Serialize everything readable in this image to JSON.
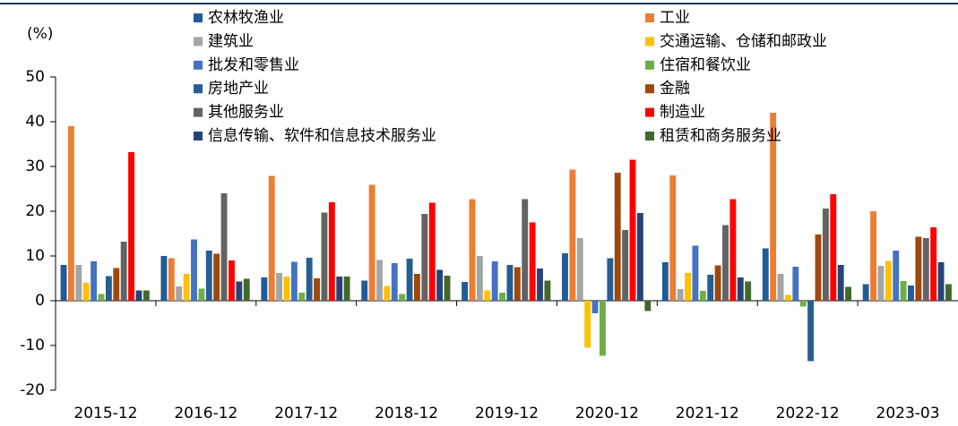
{
  "chart_data": {
    "type": "bar",
    "y_label": "(%)",
    "categories": [
      "2015-12",
      "2016-12",
      "2017-12",
      "2018-12",
      "2019-12",
      "2020-12",
      "2021-12",
      "2022-12",
      "2023-03"
    ],
    "ylim": [
      -20,
      50
    ],
    "yticks": [
      -20,
      -10,
      0,
      10,
      20,
      30,
      40,
      50
    ],
    "series": [
      {
        "name": "农林牧渔业",
        "color": "#1f5c99",
        "values": [
          8,
          10,
          5.2,
          4.5,
          4.2,
          10.6,
          8.6,
          11.7,
          3.7
        ]
      },
      {
        "name": "工业",
        "color": "#ed7d31",
        "values": [
          39,
          9.5,
          27.9,
          25.9,
          22.7,
          29.3,
          28,
          42,
          20
        ]
      },
      {
        "name": "建筑业",
        "color": "#a5a5a5",
        "values": [
          8,
          3.2,
          6.2,
          9.1,
          10,
          14,
          2.6,
          6,
          7.8
        ]
      },
      {
        "name": "交通运输、仓储和邮政业",
        "color": "#ffc000",
        "values": [
          4,
          6,
          5.4,
          3.3,
          2.3,
          -10.5,
          6.2,
          1.3,
          8.9
        ]
      },
      {
        "name": "批发和零售业",
        "color": "#4472c4",
        "values": [
          8.8,
          13.7,
          8.7,
          8.4,
          8.8,
          -2.8,
          12.3,
          7.6,
          11.2
        ]
      },
      {
        "name": "住宿和餐饮业",
        "color": "#70ad47",
        "values": [
          1.5,
          2.7,
          1.8,
          1.5,
          1.8,
          -12.3,
          2.2,
          -1.3,
          4.4
        ]
      },
      {
        "name": "房地产业",
        "color": "#255e91",
        "values": [
          5.5,
          11.2,
          9.6,
          9.4,
          8,
          9.5,
          5.8,
          -13.5,
          3.4
        ]
      },
      {
        "name": "金融",
        "color": "#9e480e",
        "values": [
          7.3,
          10.5,
          5,
          6,
          7.5,
          28.6,
          7.9,
          14.8,
          14.3
        ]
      },
      {
        "name": "其他服务业",
        "color": "#636363",
        "values": [
          13.2,
          24,
          19.7,
          19.4,
          22.7,
          15.8,
          16.9,
          20.6,
          14
        ]
      },
      {
        "name": "制造业",
        "color": "#ff0000",
        "values": [
          33.2,
          9,
          22,
          21.9,
          17.5,
          31.5,
          22.7,
          23.8,
          16.4
        ]
      },
      {
        "name": "信息传输、软件和信息技术服务业",
        "color": "#264478",
        "values": [
          2.3,
          4.3,
          5.4,
          6.9,
          7.2,
          19.6,
          5.2,
          8,
          8.6
        ]
      },
      {
        "name": "租赁和商务服务业",
        "color": "#43682b",
        "values": [
          2.3,
          4.9,
          5.4,
          5.6,
          4.5,
          -2.3,
          4.3,
          3.1,
          3.7
        ]
      }
    ]
  }
}
